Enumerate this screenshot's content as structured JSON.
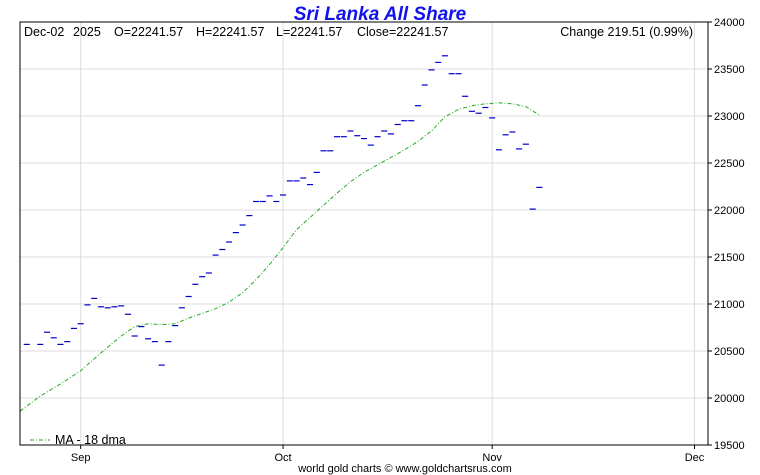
{
  "chart_data": {
    "type": "line",
    "title": "Sri Lanka All Share",
    "info": {
      "date": "Dec-02",
      "year": "2025",
      "open": "O=22241.57",
      "high": "H=22241.57",
      "low": "L=22241.57",
      "close": "Close=22241.57",
      "change": "Change 219.51 (0.99%)"
    },
    "ylim": [
      19500,
      24000
    ],
    "y_ticks": [
      24000,
      23500,
      23000,
      22500,
      22000,
      21500,
      21000,
      20500,
      20000,
      19500
    ],
    "x_ticks": [
      {
        "label": "Sep",
        "day": 9
      },
      {
        "label": "Oct",
        "day": 39
      },
      {
        "label": "Nov",
        "day": 70
      },
      {
        "label": "Dec",
        "day": 100
      }
    ],
    "x_range": [
      0,
      102
    ],
    "grid": true,
    "legend_position": "bottom-left",
    "footer": "world gold charts © www.goldchartsrus.com",
    "series": [
      {
        "name": "",
        "color": "#0000cc",
        "style": "close-ticks",
        "points": [
          [
            1,
            20570
          ],
          [
            3,
            20570
          ],
          [
            4,
            20700
          ],
          [
            5,
            20640
          ],
          [
            6,
            20570
          ],
          [
            7,
            20600
          ],
          [
            8,
            20740
          ],
          [
            9,
            20790
          ],
          [
            10,
            20990
          ],
          [
            11,
            21060
          ],
          [
            12,
            20970
          ],
          [
            13,
            20960
          ],
          [
            14,
            20970
          ],
          [
            15,
            20980
          ],
          [
            16,
            20890
          ],
          [
            17,
            20660
          ],
          [
            18,
            20760
          ],
          [
            19,
            20630
          ],
          [
            20,
            20600
          ],
          [
            21,
            20350
          ],
          [
            22,
            20600
          ],
          [
            23,
            20770
          ],
          [
            24,
            20960
          ],
          [
            25,
            21080
          ],
          [
            26,
            21210
          ],
          [
            27,
            21290
          ],
          [
            28,
            21330
          ],
          [
            29,
            21520
          ],
          [
            30,
            21580
          ],
          [
            31,
            21660
          ],
          [
            32,
            21760
          ],
          [
            33,
            21840
          ],
          [
            34,
            21940
          ],
          [
            35,
            22090
          ],
          [
            36,
            22090
          ],
          [
            37,
            22150
          ],
          [
            38,
            22090
          ],
          [
            39,
            22160
          ],
          [
            40,
            22310
          ],
          [
            41,
            22310
          ],
          [
            42,
            22340
          ],
          [
            43,
            22270
          ],
          [
            44,
            22400
          ],
          [
            45,
            22630
          ],
          [
            46,
            22630
          ],
          [
            47,
            22780
          ],
          [
            48,
            22780
          ],
          [
            49,
            22840
          ],
          [
            50,
            22790
          ],
          [
            51,
            22760
          ],
          [
            52,
            22690
          ],
          [
            53,
            22780
          ],
          [
            54,
            22840
          ],
          [
            55,
            22810
          ],
          [
            56,
            22910
          ],
          [
            57,
            22950
          ],
          [
            58,
            22950
          ],
          [
            59,
            23110
          ],
          [
            60,
            23330
          ],
          [
            61,
            23490
          ],
          [
            62,
            23570
          ],
          [
            63,
            23640
          ],
          [
            64,
            23450
          ],
          [
            65,
            23450
          ],
          [
            66,
            23210
          ],
          [
            67,
            23050
          ],
          [
            68,
            23030
          ],
          [
            69,
            23090
          ],
          [
            70,
            22980
          ],
          [
            71,
            22640
          ],
          [
            72,
            22800
          ],
          [
            73,
            22830
          ],
          [
            74,
            22650
          ],
          [
            75,
            22700
          ],
          [
            76,
            22010
          ],
          [
            77,
            22240
          ]
        ]
      },
      {
        "name": "MA - 18 dma",
        "color": "#22aa22",
        "style": "dash-dot",
        "points": [
          [
            0,
            19860
          ],
          [
            3,
            20020
          ],
          [
            6,
            20150
          ],
          [
            9,
            20290
          ],
          [
            12,
            20480
          ],
          [
            15,
            20660
          ],
          [
            17,
            20760
          ],
          [
            19,
            20790
          ],
          [
            21,
            20780
          ],
          [
            23,
            20790
          ],
          [
            25,
            20850
          ],
          [
            27,
            20900
          ],
          [
            29,
            20950
          ],
          [
            31,
            21020
          ],
          [
            33,
            21120
          ],
          [
            35,
            21260
          ],
          [
            37,
            21420
          ],
          [
            39,
            21600
          ],
          [
            41,
            21790
          ],
          [
            43,
            21920
          ],
          [
            45,
            22050
          ],
          [
            47,
            22180
          ],
          [
            49,
            22300
          ],
          [
            51,
            22400
          ],
          [
            53,
            22480
          ],
          [
            55,
            22560
          ],
          [
            57,
            22640
          ],
          [
            59,
            22730
          ],
          [
            61,
            22840
          ],
          [
            63,
            22990
          ],
          [
            65,
            23070
          ],
          [
            67,
            23110
          ],
          [
            69,
            23130
          ],
          [
            71,
            23140
          ],
          [
            73,
            23130
          ],
          [
            75,
            23100
          ],
          [
            77,
            23010
          ]
        ]
      }
    ]
  }
}
